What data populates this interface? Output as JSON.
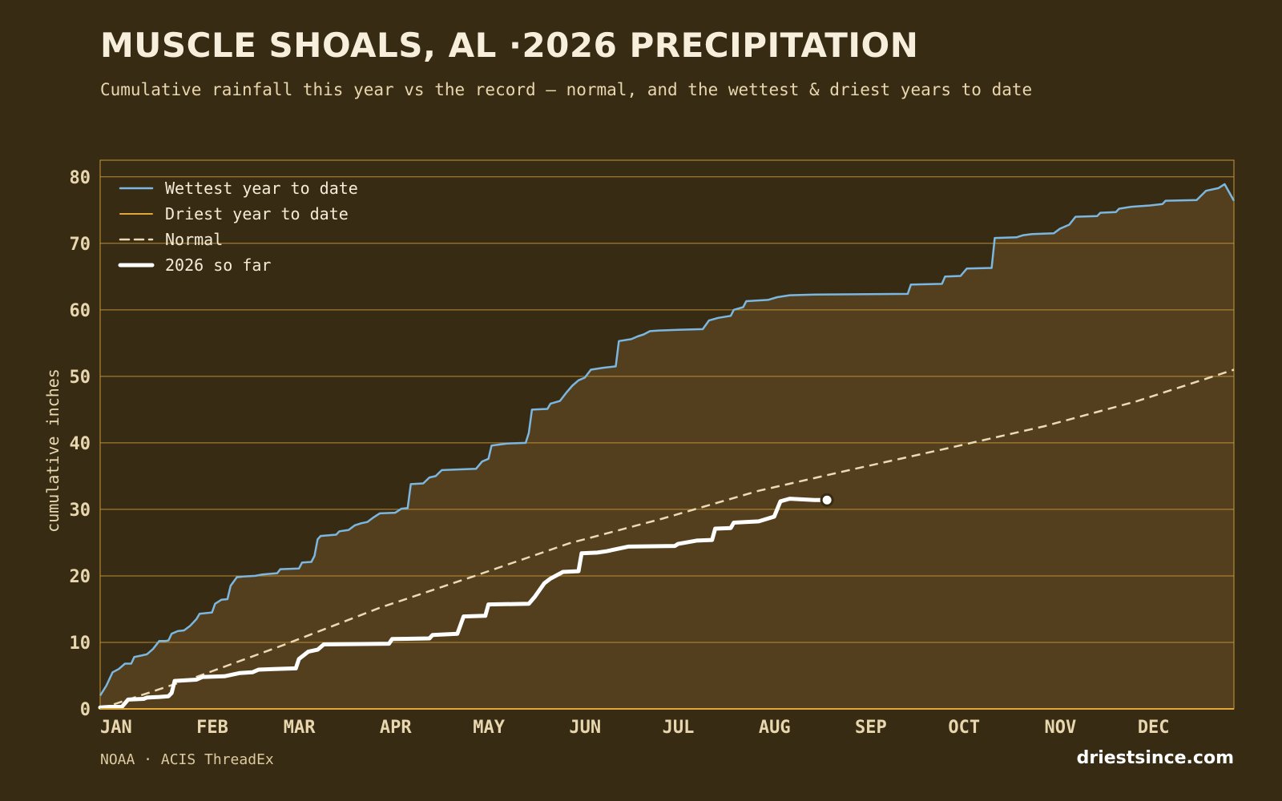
{
  "header": {
    "title": "MUSCLE SHOALS, AL ·2026 PRECIPITATION",
    "subtitle": "Cumulative rainfall this year vs the record — normal, and the wettest & driest years to date"
  },
  "footer": {
    "source": "NOAA · ACIS ThreadEx",
    "brand": "driestsince.com"
  },
  "colors": {
    "background": "#372b13",
    "band_fill": "#533f1e",
    "grid": "#c9973a",
    "wettest": "#7bb7e0",
    "driest": "#e0a83a",
    "normal": "#eadbb5",
    "current": "#ffffff",
    "axis_text": "#e8d7ae"
  },
  "chart_data": {
    "type": "line",
    "ylabel": "cumulative inches",
    "xlabel": "",
    "ylim": [
      0,
      82.5
    ],
    "xlim": [
      0,
      365
    ],
    "yticks": [
      0,
      10,
      20,
      30,
      40,
      50,
      60,
      70,
      80
    ],
    "xticks": [
      {
        "label": "JAN",
        "day": 0
      },
      {
        "label": "FEB",
        "day": 31
      },
      {
        "label": "MAR",
        "day": 59
      },
      {
        "label": "APR",
        "day": 90
      },
      {
        "label": "MAY",
        "day": 120
      },
      {
        "label": "JUN",
        "day": 151
      },
      {
        "label": "JUL",
        "day": 181
      },
      {
        "label": "AUG",
        "day": 212
      },
      {
        "label": "SEP",
        "day": 243
      },
      {
        "label": "OCT",
        "day": 273
      },
      {
        "label": "NOV",
        "day": 304
      },
      {
        "label": "DEC",
        "day": 334
      }
    ],
    "grid": true,
    "legend_position": "top-left",
    "series": [
      {
        "name": "Wettest year to date",
        "style": "solid",
        "points": [
          [
            0,
            2.0
          ],
          [
            2,
            3.5
          ],
          [
            4,
            5.5
          ],
          [
            6,
            6.0
          ],
          [
            8,
            6.8
          ],
          [
            10,
            6.8
          ],
          [
            11,
            7.8
          ],
          [
            13,
            8.0
          ],
          [
            15,
            8.2
          ],
          [
            17,
            9.0
          ],
          [
            19,
            10.2
          ],
          [
            21,
            10.2
          ],
          [
            22,
            10.3
          ],
          [
            23,
            11.3
          ],
          [
            25,
            11.7
          ],
          [
            27,
            11.8
          ],
          [
            29,
            12.5
          ],
          [
            31,
            13.5
          ],
          [
            32,
            14.3
          ],
          [
            36,
            14.5
          ],
          [
            37,
            15.8
          ],
          [
            39,
            16.4
          ],
          [
            41,
            16.5
          ],
          [
            42,
            18.5
          ],
          [
            44,
            19.8
          ],
          [
            46,
            19.9
          ],
          [
            50,
            20.0
          ],
          [
            52,
            20.2
          ],
          [
            57,
            20.4
          ],
          [
            58,
            21.0
          ],
          [
            64,
            21.1
          ],
          [
            65,
            22.0
          ],
          [
            68,
            22.1
          ],
          [
            69,
            23.0
          ],
          [
            70,
            25.5
          ],
          [
            71,
            26.0
          ],
          [
            76,
            26.2
          ],
          [
            77,
            26.7
          ],
          [
            80,
            26.9
          ],
          [
            82,
            27.6
          ],
          [
            84,
            27.9
          ],
          [
            86,
            28.1
          ],
          [
            88,
            28.8
          ],
          [
            90,
            29.4
          ],
          [
            95,
            29.5
          ],
          [
            97,
            30.1
          ],
          [
            99,
            30.2
          ],
          [
            100,
            33.8
          ],
          [
            104,
            33.9
          ],
          [
            106,
            34.8
          ],
          [
            108,
            35.0
          ],
          [
            110,
            35.9
          ],
          [
            115,
            36.0
          ],
          [
            121,
            36.1
          ],
          [
            123,
            37.2
          ],
          [
            125,
            37.6
          ],
          [
            126,
            39.6
          ],
          [
            131,
            39.9
          ],
          [
            137,
            40.0
          ],
          [
            138,
            41.5
          ],
          [
            139,
            45.0
          ],
          [
            144,
            45.1
          ],
          [
            145,
            45.9
          ],
          [
            148,
            46.3
          ],
          [
            150,
            47.5
          ],
          [
            152,
            48.6
          ],
          [
            154,
            49.4
          ],
          [
            156,
            49.8
          ],
          [
            158,
            51.0
          ],
          [
            162,
            51.3
          ],
          [
            166,
            51.5
          ],
          [
            167,
            55.3
          ],
          [
            171,
            55.6
          ],
          [
            173,
            56.0
          ],
          [
            175,
            56.3
          ],
          [
            177,
            56.8
          ],
          [
            180,
            56.9
          ],
          [
            186,
            57.0
          ],
          [
            194,
            57.1
          ],
          [
            196,
            58.4
          ],
          [
            199,
            58.8
          ],
          [
            203,
            59.1
          ],
          [
            204,
            60.0
          ],
          [
            207,
            60.4
          ],
          [
            208,
            61.3
          ],
          [
            215,
            61.5
          ],
          [
            218,
            61.9
          ],
          [
            222,
            62.2
          ],
          [
            230,
            62.3
          ],
          [
            260,
            62.4
          ],
          [
            261,
            63.8
          ],
          [
            271,
            63.9
          ],
          [
            272,
            65.0
          ],
          [
            277,
            65.1
          ],
          [
            279,
            66.2
          ],
          [
            287,
            66.3
          ],
          [
            288,
            70.8
          ],
          [
            295,
            70.9
          ],
          [
            297,
            71.2
          ],
          [
            300,
            71.4
          ],
          [
            307,
            71.5
          ],
          [
            309,
            72.2
          ],
          [
            312,
            72.8
          ],
          [
            314,
            74.0
          ],
          [
            321,
            74.1
          ],
          [
            322,
            74.6
          ],
          [
            327,
            74.7
          ],
          [
            328,
            75.2
          ],
          [
            332,
            75.5
          ],
          [
            338,
            75.7
          ],
          [
            342,
            75.9
          ],
          [
            343,
            76.4
          ],
          [
            353,
            76.5
          ],
          [
            356,
            77.9
          ],
          [
            360,
            78.3
          ],
          [
            362,
            78.9
          ],
          [
            365,
            76.4
          ]
        ]
      },
      {
        "name": "Driest year to date",
        "style": "solid",
        "points": [
          [
            0,
            0.0
          ],
          [
            365,
            0.0
          ]
        ]
      },
      {
        "name": "Normal",
        "style": "dashed",
        "points": [
          [
            0,
            0.0
          ],
          [
            31,
            4.8
          ],
          [
            59,
            9.6
          ],
          [
            90,
            15.2
          ],
          [
            120,
            19.9
          ],
          [
            151,
            24.9
          ],
          [
            181,
            28.6
          ],
          [
            212,
            32.8
          ],
          [
            243,
            36.1
          ],
          [
            273,
            39.2
          ],
          [
            304,
            42.5
          ],
          [
            334,
            46.3
          ],
          [
            365,
            51.0
          ]
        ]
      },
      {
        "name": "2026 so far",
        "style": "bold",
        "points": [
          [
            0,
            0.2
          ],
          [
            3,
            0.3
          ],
          [
            7,
            0.3
          ],
          [
            9,
            1.4
          ],
          [
            14,
            1.5
          ],
          [
            15,
            1.7
          ],
          [
            19,
            1.8
          ],
          [
            22,
            1.9
          ],
          [
            23,
            2.4
          ],
          [
            24,
            4.2
          ],
          [
            31,
            4.4
          ],
          [
            33,
            4.8
          ],
          [
            40,
            4.9
          ],
          [
            45,
            5.4
          ],
          [
            49,
            5.5
          ],
          [
            51,
            5.9
          ],
          [
            56,
            6.0
          ],
          [
            63,
            6.1
          ],
          [
            64,
            7.5
          ],
          [
            67,
            8.6
          ],
          [
            70,
            8.9
          ],
          [
            72,
            9.7
          ],
          [
            93,
            9.8
          ],
          [
            94,
            10.5
          ],
          [
            106,
            10.6
          ],
          [
            107,
            11.1
          ],
          [
            115,
            11.3
          ],
          [
            117,
            13.9
          ],
          [
            124,
            14.0
          ],
          [
            125,
            15.7
          ],
          [
            138,
            15.8
          ],
          [
            140,
            16.9
          ],
          [
            143,
            18.9
          ],
          [
            145,
            19.6
          ],
          [
            149,
            20.6
          ],
          [
            154,
            20.7
          ],
          [
            155,
            23.4
          ],
          [
            160,
            23.5
          ],
          [
            163,
            23.7
          ],
          [
            170,
            24.4
          ],
          [
            185,
            24.5
          ],
          [
            186,
            24.8
          ],
          [
            192,
            25.3
          ],
          [
            197,
            25.4
          ],
          [
            198,
            27.1
          ],
          [
            203,
            27.2
          ],
          [
            204,
            28.0
          ],
          [
            212,
            28.2
          ],
          [
            217,
            28.9
          ],
          [
            219,
            31.2
          ],
          [
            222,
            31.6
          ],
          [
            230,
            31.4
          ],
          [
            234,
            31.4
          ]
        ],
        "endpoint_marker": true
      }
    ]
  }
}
